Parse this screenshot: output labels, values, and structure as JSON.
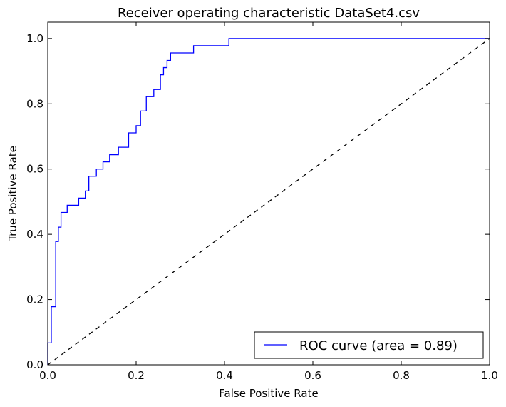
{
  "chart_data": {
    "type": "line",
    "title": "Receiver operating characteristic DataSet4.csv",
    "xlabel": "False Positive Rate",
    "ylabel": "True Positive Rate",
    "xlim": [
      0.0,
      1.0
    ],
    "ylim": [
      0.0,
      1.05
    ],
    "xticks": [
      "0.0",
      "0.2",
      "0.4",
      "0.6",
      "0.8",
      "1.0"
    ],
    "yticks": [
      "0.0",
      "0.2",
      "0.4",
      "0.6",
      "0.8",
      "1.0"
    ],
    "grid": false,
    "legend_position": "lower-right",
    "series": [
      {
        "name": "ROC curve (area = 0.89)",
        "color": "#0000ff",
        "style": "solid",
        "x": [
          0.0,
          0.0,
          0.008,
          0.008,
          0.018,
          0.018,
          0.024,
          0.024,
          0.03,
          0.03,
          0.044,
          0.044,
          0.07,
          0.07,
          0.085,
          0.085,
          0.093,
          0.093,
          0.11,
          0.11,
          0.125,
          0.125,
          0.14,
          0.14,
          0.16,
          0.16,
          0.183,
          0.183,
          0.2,
          0.2,
          0.21,
          0.21,
          0.223,
          0.223,
          0.24,
          0.24,
          0.255,
          0.255,
          0.262,
          0.262,
          0.27,
          0.27,
          0.278,
          0.278,
          0.33,
          0.33,
          0.41,
          0.41,
          1.0
        ],
        "y": [
          0.0,
          0.067,
          0.067,
          0.178,
          0.178,
          0.378,
          0.378,
          0.422,
          0.422,
          0.467,
          0.467,
          0.489,
          0.489,
          0.511,
          0.511,
          0.533,
          0.533,
          0.578,
          0.578,
          0.6,
          0.6,
          0.622,
          0.622,
          0.644,
          0.644,
          0.667,
          0.667,
          0.711,
          0.711,
          0.733,
          0.733,
          0.778,
          0.778,
          0.822,
          0.822,
          0.844,
          0.844,
          0.889,
          0.889,
          0.911,
          0.911,
          0.933,
          0.933,
          0.956,
          0.956,
          0.978,
          0.978,
          1.0,
          1.0
        ]
      },
      {
        "color": "#000000",
        "style": "dashed",
        "x": [
          0.0,
          1.0
        ],
        "y": [
          0.0,
          1.0
        ]
      }
    ]
  }
}
